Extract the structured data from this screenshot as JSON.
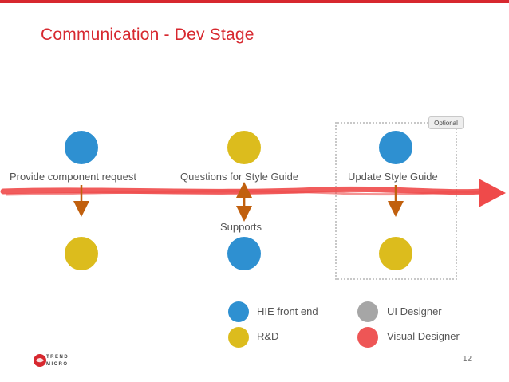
{
  "title": "Communication - Dev Stage",
  "colors": {
    "brand": "#d7282f",
    "blue": "#2e90d1",
    "yellow": "#dcbc1d",
    "gray": "#a6a6a6",
    "red": "#ee5656",
    "arrow_brown": "#c1600e",
    "timeline_red": "#ef4a4a"
  },
  "steps": [
    {
      "label": "Provide component request",
      "top_role": "HIE front end",
      "bottom_role": "R&D",
      "arrow": "down"
    },
    {
      "label": "Questions for Style Guide",
      "sub_label": "Supports",
      "top_role": "R&D",
      "bottom_role": "HIE front end",
      "arrow": "both"
    },
    {
      "label": "Update Style Guide",
      "top_role": "HIE front end",
      "bottom_role": "R&D",
      "arrow": "down"
    }
  ],
  "optional_tag": "Optional",
  "legend": [
    {
      "label": "HIE front end",
      "color": "#2e90d1"
    },
    {
      "label": "UI Designer",
      "color": "#a6a6a6"
    },
    {
      "label": "R&D",
      "color": "#dcbc1d"
    },
    {
      "label": "Visual Designer",
      "color": "#ee5656"
    }
  ],
  "footer": {
    "page_number": "12",
    "logo_text_line1": "TREND",
    "logo_text_line2": "MICRO"
  }
}
